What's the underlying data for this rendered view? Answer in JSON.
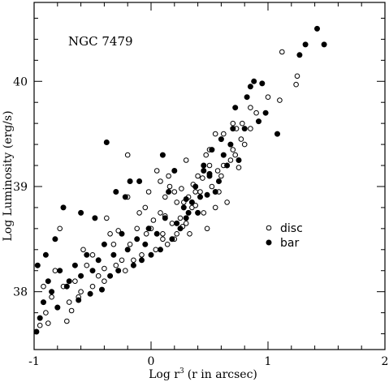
{
  "chart_data": {
    "type": "scatter",
    "annotation": "NGC 7479",
    "xlabel": "Log r",
    "xlabel_sup": "3",
    "xlabel_suffix": "(r in arcsec)",
    "ylabel": "Log Luminosity (erg/s)",
    "xlim": [
      -1,
      2
    ],
    "ylim": [
      37.45,
      40.75
    ],
    "x_major_ticks": [
      -1,
      0,
      1,
      2
    ],
    "x_tick_labels": [
      "-1",
      "0",
      "1",
      "2"
    ],
    "y_major_ticks": [
      38,
      39,
      40
    ],
    "y_tick_labels": [
      "38",
      "39",
      "40"
    ],
    "grid": false,
    "legend_position": "right-middle",
    "series": [
      {
        "name": "disc",
        "marker": "open-circle",
        "color": "#000000",
        "x": [
          1.12,
          1.25,
          1.24,
          1.1,
          0.85,
          0.78,
          0.8,
          0.73,
          0.72,
          0.85,
          0.75,
          0.68,
          0.55,
          0.5,
          0.6,
          0.47,
          0.4,
          0.38,
          0.3,
          0.28,
          0.2,
          0.15,
          -0.2,
          -0.02,
          0.05,
          0.0,
          0.08,
          0.12,
          0.18,
          0.22,
          0.25,
          0.32,
          0.35,
          0.42,
          0.45,
          0.52,
          0.58,
          0.62,
          0.7,
          0.65,
          0.55,
          0.48,
          0.4,
          0.33,
          0.27,
          0.2,
          0.14,
          0.1,
          0.04,
          -0.04,
          -0.08,
          -0.12,
          -0.15,
          -0.18,
          -0.22,
          -0.25,
          -0.3,
          -0.35,
          -0.4,
          -0.45,
          -0.5,
          -0.55,
          -0.6,
          -0.65,
          -0.7,
          -0.75,
          -0.8,
          -0.85,
          -0.9,
          -0.95,
          -0.78,
          -0.72,
          -0.62,
          -0.5,
          -0.4,
          -0.32,
          -0.28,
          -0.1,
          0.02,
          0.12,
          0.22,
          0.3,
          0.38,
          0.16,
          0.08,
          -0.05,
          0.26,
          0.36,
          0.44,
          0.5,
          0.57,
          0.1,
          -0.2,
          -0.38,
          -0.58,
          -0.68,
          -0.88,
          0.62,
          0.7,
          0.77,
          0.9,
          1.0,
          -0.82,
          -0.92
        ],
        "y": [
          40.28,
          40.05,
          39.97,
          39.82,
          39.75,
          39.6,
          39.4,
          39.55,
          39.3,
          39.55,
          39.18,
          39.25,
          39.5,
          39.35,
          39.1,
          39.3,
          39.1,
          38.95,
          39.25,
          38.85,
          38.95,
          39.1,
          39.3,
          38.95,
          39.15,
          38.6,
          38.75,
          38.9,
          38.65,
          38.85,
          38.7,
          38.9,
          38.8,
          38.95,
          38.75,
          39.0,
          38.95,
          39.2,
          39.35,
          38.85,
          38.8,
          38.6,
          38.75,
          38.55,
          38.62,
          38.5,
          38.45,
          38.55,
          38.4,
          38.55,
          38.35,
          38.6,
          38.3,
          38.45,
          38.2,
          38.3,
          38.25,
          38.55,
          38.1,
          38.15,
          38.05,
          38.25,
          38.0,
          38.1,
          37.9,
          38.05,
          37.85,
          37.95,
          37.8,
          37.68,
          38.6,
          37.72,
          37.95,
          38.35,
          38.22,
          38.45,
          38.58,
          38.75,
          38.68,
          38.72,
          38.55,
          38.65,
          38.82,
          39.0,
          39.05,
          38.8,
          38.98,
          39.02,
          39.08,
          39.2,
          39.15,
          38.5,
          38.9,
          38.7,
          38.4,
          37.82,
          37.7,
          39.5,
          39.6,
          39.45,
          39.7,
          39.85,
          38.2,
          38.05
        ]
      },
      {
        "name": "bar",
        "marker": "filled-circle",
        "color": "#000000",
        "x": [
          1.42,
          1.32,
          1.48,
          1.27,
          0.88,
          0.85,
          0.95,
          0.82,
          1.08,
          0.72,
          0.7,
          0.6,
          0.52,
          0.45,
          -0.38,
          -0.18,
          0.1,
          -0.1,
          -0.22,
          -0.3,
          -0.48,
          -0.6,
          -0.75,
          -0.82,
          -0.9,
          -0.97,
          0.2,
          0.15,
          0.28,
          0.35,
          0.42,
          0.5,
          0.58,
          0.65,
          0.55,
          0.4,
          0.3,
          0.22,
          0.12,
          0.05,
          -0.02,
          -0.05,
          -0.12,
          -0.2,
          -0.25,
          -0.32,
          -0.4,
          -0.45,
          -0.5,
          -0.55,
          -0.6,
          -0.65,
          -0.7,
          -0.72,
          -0.78,
          -0.85,
          -0.88,
          -0.92,
          0.25,
          0.32,
          0.18,
          0.08,
          0.0,
          -0.08,
          -0.15,
          -0.28,
          -0.35,
          0.38,
          0.45,
          0.48,
          0.62,
          0.68,
          0.75,
          0.8,
          0.92,
          0.98,
          0.5,
          0.3,
          -0.42,
          -0.52,
          -0.62,
          -0.8,
          -0.95,
          -0.98
        ],
        "y": [
          40.5,
          40.35,
          40.35,
          40.25,
          40.0,
          39.95,
          39.98,
          39.85,
          39.5,
          39.75,
          39.55,
          39.45,
          39.35,
          39.2,
          39.42,
          39.05,
          39.3,
          39.05,
          38.9,
          38.95,
          38.7,
          38.75,
          38.8,
          38.5,
          38.35,
          38.25,
          39.15,
          38.95,
          38.8,
          38.85,
          38.9,
          39.1,
          39.05,
          39.2,
          38.95,
          38.75,
          38.7,
          38.65,
          38.7,
          38.55,
          38.6,
          38.45,
          38.5,
          38.4,
          38.55,
          38.35,
          38.45,
          38.3,
          38.2,
          38.35,
          38.15,
          38.25,
          38.1,
          38.05,
          38.2,
          38.0,
          38.1,
          37.9,
          38.6,
          38.75,
          38.5,
          38.4,
          38.35,
          38.3,
          38.25,
          38.2,
          38.15,
          39.0,
          39.15,
          38.92,
          39.3,
          39.4,
          39.25,
          39.55,
          39.62,
          39.7,
          39.12,
          38.88,
          38.02,
          37.98,
          37.92,
          37.85,
          37.75,
          37.62
        ]
      }
    ]
  }
}
